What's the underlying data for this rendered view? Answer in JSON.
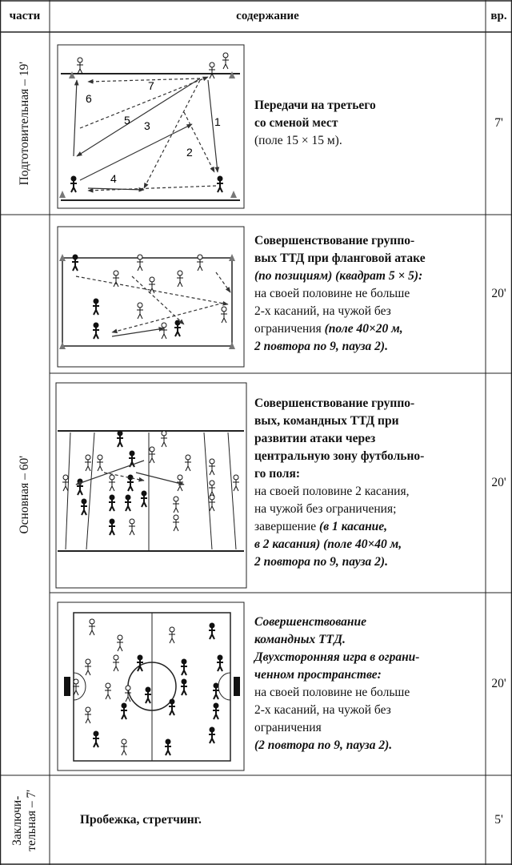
{
  "header": {
    "parts": "части",
    "content": "содержание",
    "time": "вр."
  },
  "parts": [
    {
      "label": [
        "Подготовительная – 19'"
      ]
    },
    {
      "label": [
        "Основная – 60'"
      ]
    },
    {
      "label": [
        "Заключи-",
        "тельная – 7'"
      ]
    }
  ],
  "diagram1_labels": [
    "1",
    "2",
    "3",
    "4",
    "5",
    "6",
    "7"
  ],
  "rows": [
    {
      "lines": [
        [
          {
            "text": "Передачи на третьего",
            "style": "b"
          }
        ],
        [
          {
            "text": "со сменой мест",
            "style": "b"
          }
        ],
        [
          {
            "text": "(поле 15 × 15 м).",
            "style": "n"
          }
        ]
      ],
      "time": "7'"
    },
    {
      "lines": [
        [
          {
            "text": "Совершенствование группо-",
            "style": "b"
          }
        ],
        [
          {
            "text": "вых ТТД при фланговой атаке",
            "style": "b"
          }
        ],
        [
          {
            "text": "(по позициям) (квадрат 5 × 5):",
            "style": "bi"
          }
        ],
        [
          {
            "text": "на своей половине не больше",
            "style": "n"
          }
        ],
        [
          {
            "text": "2-х касаний, на чужой без",
            "style": "n"
          }
        ],
        [
          {
            "text": "ограничения ",
            "style": "n"
          },
          {
            "text": "(поле 40×20 м,",
            "style": "bi"
          }
        ],
        [
          {
            "text": "2 повтора по 9, пауза 2).",
            "style": "bi"
          }
        ]
      ],
      "time": "20'"
    },
    {
      "lines": [
        [
          {
            "text": "Совершенствование группо-",
            "style": "b"
          }
        ],
        [
          {
            "text": "вых, командных ТТД при",
            "style": "b"
          }
        ],
        [
          {
            "text": "развитии атаки через",
            "style": "b"
          }
        ],
        [
          {
            "text": "центральную зону футбольно-",
            "style": "b"
          }
        ],
        [
          {
            "text": "го поля:",
            "style": "b"
          }
        ],
        [
          {
            "text": "на своей половине 2 касания,",
            "style": "n"
          }
        ],
        [
          {
            "text": "на чужой без ограничения;",
            "style": "n"
          }
        ],
        [
          {
            "text": "завершение ",
            "style": "n"
          },
          {
            "text": "(в 1 касание,",
            "style": "bi"
          }
        ],
        [
          {
            "text": "в 2 касания) (поле 40×40 м,",
            "style": "bi"
          }
        ],
        [
          {
            "text": "2 повтора по 9, пауза 2).",
            "style": "bi"
          }
        ]
      ],
      "time": "20'"
    },
    {
      "lines": [
        [
          {
            "text": "Совершенствование",
            "style": "bi"
          }
        ],
        [
          {
            "text": "командных ТТД.",
            "style": "bi"
          }
        ],
        [
          {
            "text": "Двухсторонняя игра в ограни-",
            "style": "bi"
          }
        ],
        [
          {
            "text": "ченном пространстве:",
            "style": "bi"
          }
        ],
        [
          {
            "text": "на своей половине не больше",
            "style": "n"
          }
        ],
        [
          {
            "text": "2-х касаний, на чужой без",
            "style": "n"
          }
        ],
        [
          {
            "text": "ограничения",
            "style": "n"
          }
        ],
        [
          {
            "text": "(2 повтора по 9, пауза 2).",
            "style": "bi"
          }
        ]
      ],
      "time": "20'"
    },
    {
      "lines": [
        [
          {
            "text": "Пробежка, стретчинг.",
            "style": "b"
          }
        ]
      ],
      "time": "5'"
    }
  ]
}
